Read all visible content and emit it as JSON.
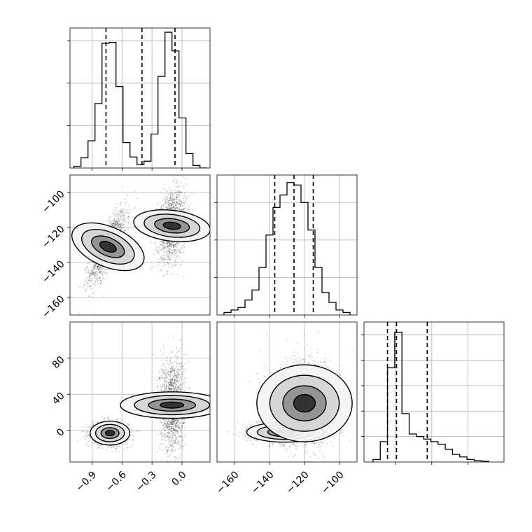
{
  "chart_data": [
    {
      "type": "histogram",
      "panel": "param0-marginal",
      "xlim": [
        -1.12,
        0.28
      ],
      "ylim": [
        0,
        0.165
      ],
      "bin_edges": [
        -1.08,
        -1.01,
        -0.94,
        -0.87,
        -0.8,
        -0.73,
        -0.66,
        -0.59,
        -0.52,
        -0.45,
        -0.38,
        -0.31,
        -0.24,
        -0.17,
        -0.1,
        -0.03,
        0.04,
        0.11,
        0.18,
        0.25
      ],
      "values": [
        0.002,
        0.012,
        0.032,
        0.076,
        0.147,
        0.148,
        0.096,
        0.03,
        0.013,
        0.004,
        0.008,
        0.04,
        0.108,
        0.16,
        0.138,
        0.059,
        0.017,
        0.003,
        0.0
      ],
      "quantiles": [
        -0.76,
        -0.4,
        -0.07
      ],
      "grid": true,
      "xticks": [
        -0.9,
        -0.6,
        -0.3,
        0.0
      ],
      "yticks": [
        0.05,
        0.1,
        0.15
      ]
    },
    {
      "type": "histogram",
      "panel": "param1-marginal",
      "xlim": [
        -170,
        -90
      ],
      "ylim": [
        0,
        0.056
      ],
      "bin_edges": [
        -166,
        -162,
        -158,
        -154,
        -150,
        -146,
        -142,
        -138,
        -134,
        -130,
        -126,
        -122,
        -118,
        -114,
        -110,
        -106,
        -102,
        -98,
        -94
      ],
      "values": [
        0.001,
        0.002,
        0.003,
        0.006,
        0.01,
        0.019,
        0.032,
        0.043,
        0.048,
        0.053,
        0.052,
        0.045,
        0.034,
        0.019,
        0.009,
        0.005,
        0.002,
        0.001
      ],
      "quantiles": [
        -137,
        -126,
        -115
      ],
      "grid": true,
      "xticks": [
        -160,
        -140,
        -120,
        -100
      ],
      "yticks": [
        0.015,
        0.03,
        0.045
      ]
    },
    {
      "type": "histogram",
      "panel": "param2-marginal",
      "xlim": [
        -35,
        120
      ],
      "ylim": [
        0,
        0.055
      ],
      "bin_edges": [
        -25,
        -17,
        -9,
        -1,
        7,
        15,
        23,
        31,
        39,
        47,
        55,
        63,
        71,
        79,
        87,
        95,
        103
      ],
      "values": [
        0.001,
        0.008,
        0.037,
        0.051,
        0.019,
        0.011,
        0.01,
        0.009,
        0.008,
        0.007,
        0.005,
        0.003,
        0.002,
        0.001,
        0.0005,
        0.0003
      ],
      "quantiles": [
        -9,
        1,
        35
      ],
      "grid": true,
      "xticks": [
        0,
        40,
        80
      ],
      "yticks": [
        0.01,
        0.02,
        0.03,
        0.04,
        0.05
      ]
    },
    {
      "type": "scatter",
      "panel": "param1-vs-param0",
      "xlim": [
        -1.12,
        0.28
      ],
      "ylim": [
        -170,
        -90
      ],
      "yticks": [
        -160,
        -140,
        -120,
        -100
      ],
      "ytick_labels": [
        "−160",
        "−140",
        "−120",
        "−100"
      ],
      "clusters": [
        {
          "center": [
            -0.74,
            -131
          ],
          "sigma": [
            0.09,
            10
          ],
          "corr": 0.78,
          "count": 1500
        },
        {
          "center": [
            -0.1,
            -119
          ],
          "sigma": [
            0.07,
            10
          ],
          "corr": 0.25,
          "count": 1500
        }
      ],
      "grid": true
    },
    {
      "type": "scatter",
      "panel": "param2-vs-param0",
      "xlim": [
        -1.12,
        0.28
      ],
      "ylim": [
        -35,
        120
      ],
      "xticks": [
        -0.9,
        -0.6,
        -0.3,
        0.0
      ],
      "xtick_labels": [
        "−0.9",
        "−0.6",
        "−0.3",
        "0.0"
      ],
      "yticks": [
        0,
        40,
        80
      ],
      "ytick_labels": [
        "0",
        "40",
        "80"
      ],
      "clusters": [
        {
          "center": [
            -0.72,
            -3
          ],
          "sigma": [
            0.09,
            6
          ],
          "corr": 0.0,
          "count": 1500
        },
        {
          "center": [
            -0.1,
            28
          ],
          "sigma": [
            0.06,
            26
          ],
          "corr": 0.0,
          "count": 1500
        }
      ],
      "grid": true
    },
    {
      "type": "scatter",
      "panel": "param2-vs-param1",
      "xlim": [
        -170,
        -90
      ],
      "ylim": [
        -35,
        120
      ],
      "xticks": [
        -160,
        -140,
        -120,
        -100
      ],
      "xtick_labels": [
        "−160",
        "−140",
        "−120",
        "−100"
      ],
      "clusters": [
        {
          "center": [
            -131,
            -2
          ],
          "sigma": [
            10,
            5
          ],
          "corr": 0.0,
          "count": 1500
        },
        {
          "center": [
            -120,
            30
          ],
          "sigma": [
            10,
            24
          ],
          "corr": 0.0,
          "count": 1500
        }
      ],
      "grid": true
    }
  ]
}
